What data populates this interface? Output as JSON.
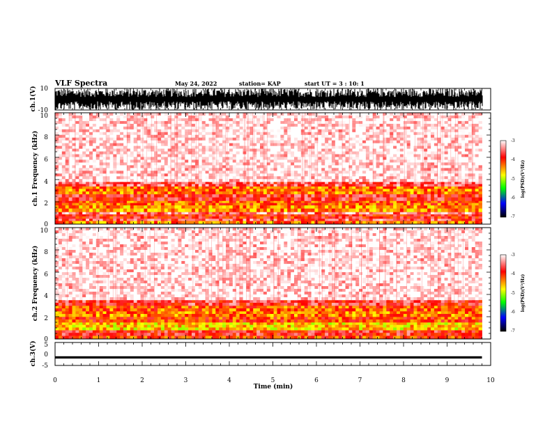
{
  "header": {
    "title": "VLF Spectra",
    "date": "May 24, 2022",
    "station": "station= KAP",
    "start_ut": "start UT =  3 : 10: 1"
  },
  "colors": {
    "waveform": "#000000",
    "spectrum_scale": [
      "#ffffff",
      "#ff0000",
      "#ffff00",
      "#00ff00",
      "#0000ff",
      "#000000"
    ]
  },
  "chart_data": [
    {
      "id": "ch1-waveform",
      "type": "line",
      "ylabel": "ch.1(V)",
      "y_ticks": [
        "10",
        "-10"
      ],
      "ylim": [
        -10,
        10
      ],
      "xlim": [
        0,
        10
      ],
      "data_end_min": 9.8,
      "description_values": {
        "amplitude_range": [
          -10,
          10
        ]
      }
    },
    {
      "id": "ch1-spectrogram",
      "type": "heatmap",
      "ylabel": "ch.1 Frequency (kHz)",
      "y_ticks": [
        "0",
        "2",
        "4",
        "6",
        "8",
        "10"
      ],
      "ylim": [
        0,
        10
      ],
      "xlim": [
        0,
        10
      ],
      "data_end_min": 9.8,
      "bands": [
        {
          "f_lo": 0.0,
          "f_hi": 0.3,
          "level": -4.3
        },
        {
          "f_lo": 0.3,
          "f_hi": 0.5,
          "level": -3.6
        },
        {
          "f_lo": 0.5,
          "f_hi": 0.9,
          "level": -3.9
        },
        {
          "f_lo": 0.9,
          "f_hi": 1.1,
          "level": -3.4
        },
        {
          "f_lo": 1.1,
          "f_hi": 1.7,
          "level": -4.4
        },
        {
          "f_lo": 1.7,
          "f_hi": 2.1,
          "level": -4.2
        },
        {
          "f_lo": 2.1,
          "f_hi": 2.7,
          "level": -3.8
        },
        {
          "f_lo": 2.7,
          "f_hi": 3.4,
          "level": -4.3
        },
        {
          "f_lo": 3.4,
          "f_hi": 3.8,
          "level": -3.6
        },
        {
          "f_lo": 3.8,
          "f_hi": 10.0,
          "level": -3.1
        }
      ],
      "colorbar": {
        "label": "log(PSD)(V²/Hz)",
        "ticks": [
          "-3",
          "-4",
          "-5",
          "-6",
          "-7"
        ],
        "range": [
          -7,
          -3
        ]
      }
    },
    {
      "id": "ch2-spectrogram",
      "type": "heatmap",
      "ylabel": "ch.2 Frequency (kHz)",
      "y_ticks": [
        "0",
        "2",
        "4",
        "6",
        "8",
        "10"
      ],
      "ylim": [
        0,
        10
      ],
      "xlim": [
        0,
        10
      ],
      "data_end_min": 9.8,
      "bands": [
        {
          "f_lo": 0.0,
          "f_hi": 0.3,
          "level": -4.1
        },
        {
          "f_lo": 0.3,
          "f_hi": 0.8,
          "level": -3.8
        },
        {
          "f_lo": 0.8,
          "f_hi": 1.5,
          "level": -4.6
        },
        {
          "f_lo": 1.5,
          "f_hi": 2.0,
          "level": -4.1
        },
        {
          "f_lo": 2.0,
          "f_hi": 2.5,
          "level": -4.3
        },
        {
          "f_lo": 2.5,
          "f_hi": 3.0,
          "level": -4.2
        },
        {
          "f_lo": 3.0,
          "f_hi": 3.5,
          "level": -3.7
        },
        {
          "f_lo": 3.5,
          "f_hi": 10.0,
          "level": -3.1
        }
      ],
      "colorbar": {
        "label": "log(PSD)(V²/Hz)",
        "ticks": [
          "-3",
          "-4",
          "-5",
          "-6",
          "-7"
        ],
        "range": [
          -7,
          -3
        ]
      }
    },
    {
      "id": "ch3-waveform",
      "type": "line",
      "ylabel": "ch.3(V)",
      "y_ticks": [
        "5",
        "0",
        "-5"
      ],
      "ylim": [
        -5,
        5
      ],
      "xlim": [
        0,
        10
      ],
      "data_end_min": 9.8,
      "description_values": {
        "signal_level": -1.5,
        "ripple": 0.5
      }
    }
  ],
  "x_axis": {
    "label": "Time (min)",
    "ticks": [
      "0",
      "1",
      "2",
      "3",
      "4",
      "5",
      "6",
      "7",
      "8",
      "9",
      "10"
    ]
  }
}
